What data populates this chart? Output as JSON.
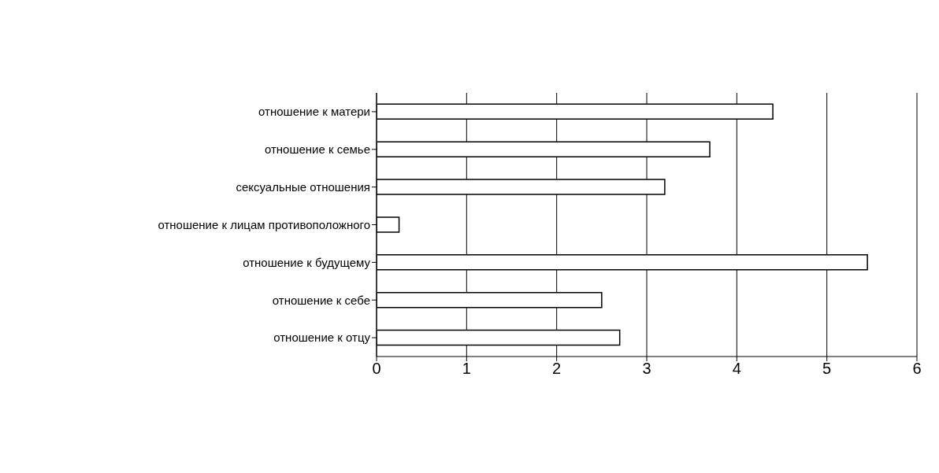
{
  "chart_data": {
    "type": "bar",
    "orientation": "horizontal",
    "categories": [
      "отношение к матери",
      "отношение к семье",
      "сексуальные отношения",
      "отношение к лицам противоположного",
      "отношение к будущему",
      "отношение к себе",
      "отношение к отцу"
    ],
    "values": [
      4.4,
      3.7,
      3.2,
      0.25,
      5.45,
      2.5,
      2.7
    ],
    "color": "#ffffff",
    "xlim": [
      0,
      6
    ],
    "xticks": [
      0,
      1,
      2,
      3,
      4,
      5,
      6
    ],
    "grid": "x"
  }
}
